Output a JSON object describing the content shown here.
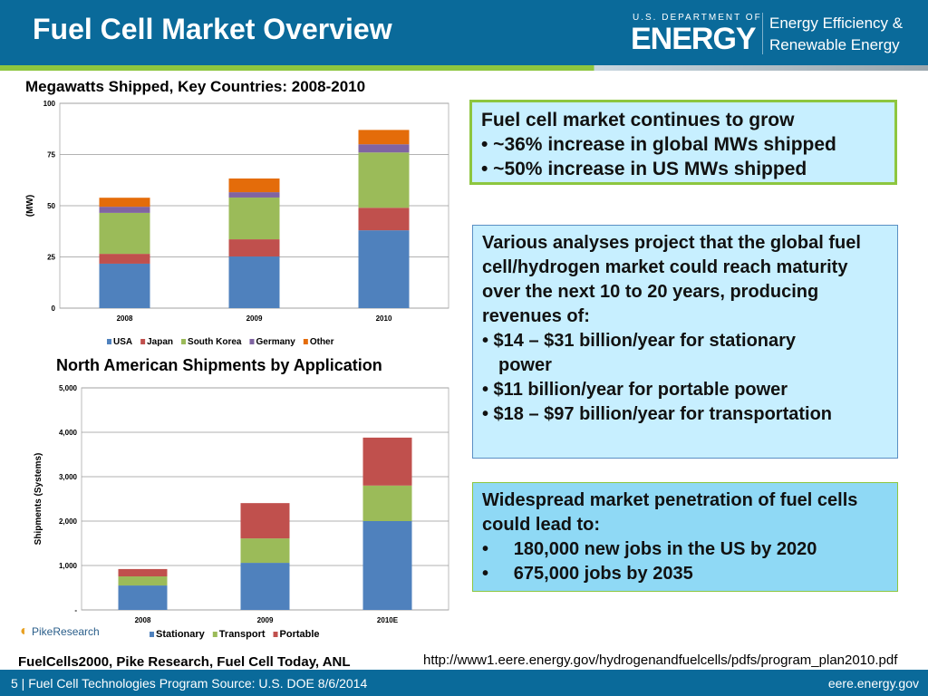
{
  "header": {
    "title": "Fuel Cell Market Overview",
    "logo_small": "U.S. DEPARTMENT OF",
    "logo_big": "ENERGY",
    "eere_line1": "Energy Efficiency &",
    "eere_line2": "Renewable Energy"
  },
  "colors": {
    "header": "#0a6a9a",
    "USA": "#4f81bd",
    "Japan": "#c0504d",
    "South Korea": "#9bbb59",
    "Germany": "#8064a2",
    "Other": "#e46c0a"
  },
  "chart_data": [
    {
      "type": "bar",
      "stacked": true,
      "title": "Megawatts Shipped, Key Countries: 2008-2010",
      "ylabel": "(MW)",
      "xlabel": "",
      "ylim": [
        0,
        100
      ],
      "yticks": [
        "0",
        "25",
        "50",
        "75",
        "100"
      ],
      "yticks_values": [
        0,
        25,
        50,
        75,
        100
      ],
      "grid": true,
      "legend": "bottom",
      "categories": [
        "2008",
        "2009",
        "2010"
      ],
      "series": [
        {
          "name": "USA",
          "values": [
            21.7,
            25.2,
            38
          ]
        },
        {
          "name": "Japan",
          "values": [
            4.8,
            8.4,
            11
          ]
        },
        {
          "name": "South Korea",
          "values": [
            20,
            20.4,
            27
          ]
        },
        {
          "name": "Germany",
          "values": [
            3,
            2.6,
            4
          ]
        },
        {
          "name": "Other",
          "values": [
            4.4,
            6.7,
            7
          ]
        }
      ]
    },
    {
      "type": "bar",
      "stacked": true,
      "title": "North American Shipments by Application",
      "ylabel": "Shipments (Systems)",
      "xlabel": "",
      "ylim": [
        0,
        5000
      ],
      "yticks": [
        "-",
        "1,000",
        "2,000",
        "3,000",
        "4,000",
        "5,000"
      ],
      "yticks_values": [
        0,
        1000,
        2000,
        3000,
        4000,
        5000
      ],
      "grid": true,
      "legend": "bottom",
      "categories": [
        "2008",
        "2009",
        "2010E"
      ],
      "series": [
        {
          "name": "Stationary",
          "values": [
            550,
            1060,
            2000
          ]
        },
        {
          "name": "Transport",
          "values": [
            205,
            550,
            800
          ]
        },
        {
          "name": "Portable",
          "values": [
            165,
            795,
            1080
          ]
        }
      ]
    }
  ],
  "chart_colors": [
    [
      "#4f81bd",
      "#c0504d",
      "#9bbb59",
      "#8064a2",
      "#e46c0a"
    ],
    [
      "#4f81bd",
      "#9bbb59",
      "#c0504d"
    ]
  ],
  "pike_logo": "PikeResearch",
  "box1": {
    "lines": [
      "Fuel cell market continues to grow",
      "• ~36% increase in global MWs shipped",
      "• ~50% increase in US MWs shipped"
    ]
  },
  "box2": {
    "lines": [
      "Various analyses project that the global fuel cell/hydrogen market could reach maturity over the next 10 to 20 years, producing revenues of:",
      " • $14 – $31 billion/year for stationary",
      "    power",
      "• $11 billion/year for portable power",
      "• $18 – $97 billion/year for transportation"
    ]
  },
  "box3": {
    "lines": [
      "Widespread market penetration of fuel cells could lead to:",
      "•     180,000 new jobs in the US by 2020",
      "•     675,000 jobs by 2035"
    ]
  },
  "sources": "FuelCells2000, Pike Research, Fuel Cell Today, ANL",
  "url": "http://www1.eere.energy.gov/hydrogenandfuelcells/pdfs/program_plan2010.pdf",
  "footer": {
    "left": "5 | Fuel Cell Technologies Program Source: U.S. DOE 8/6/2014",
    "right": "eere.energy.gov"
  }
}
